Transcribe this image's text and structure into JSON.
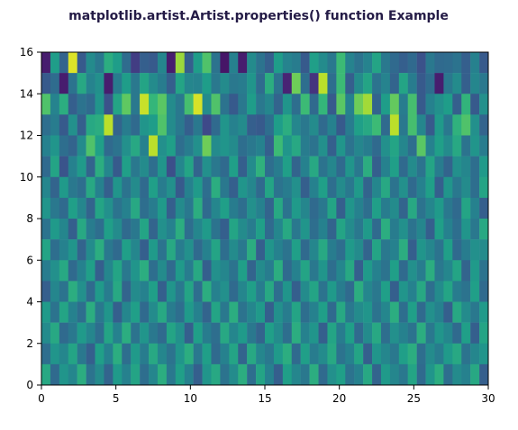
{
  "chart_data": {
    "type": "heatmap",
    "title": "matplotlib.artist.Artist.properties() function Example",
    "xlabel": "",
    "ylabel": "",
    "xlim": [
      0,
      30
    ],
    "ylim": [
      0,
      16
    ],
    "xticks": [
      0,
      5,
      10,
      15,
      20,
      25,
      30
    ],
    "yticks": [
      0,
      2,
      4,
      6,
      8,
      10,
      12,
      14,
      16
    ],
    "grid": false,
    "colormap": "viridis",
    "value_range": [
      0,
      1
    ],
    "cell_width": 1,
    "cell_height": 1,
    "rows_from_top": [
      [
        0.08,
        0.55,
        0.32,
        0.95,
        0.28,
        0.48,
        0.4,
        0.62,
        0.55,
        0.35,
        0.18,
        0.3,
        0.28,
        0.46,
        0.08,
        0.85,
        0.3,
        0.55,
        0.72,
        0.38,
        0.06,
        0.44,
        0.08,
        0.48,
        0.38,
        0.3,
        0.55,
        0.45,
        0.42,
        0.28,
        0.56,
        0.48,
        0.4,
        0.68,
        0.45,
        0.38,
        0.45,
        0.58,
        0.4,
        0.34,
        0.3,
        0.34,
        0.25,
        0.4,
        0.34,
        0.35,
        0.38,
        0.3,
        0.44,
        0.28
      ],
      [
        0.28,
        0.35,
        0.08,
        0.38,
        0.6,
        0.45,
        0.5,
        0.08,
        0.42,
        0.55,
        0.4,
        0.58,
        0.48,
        0.42,
        0.3,
        0.58,
        0.46,
        0.45,
        0.55,
        0.4,
        0.48,
        0.4,
        0.42,
        0.52,
        0.35,
        0.62,
        0.38,
        0.1,
        0.78,
        0.36,
        0.15,
        0.9,
        0.36,
        0.68,
        0.3,
        0.48,
        0.58,
        0.38,
        0.45,
        0.32,
        0.58,
        0.42,
        0.28,
        0.35,
        0.08,
        0.4,
        0.48,
        0.3,
        0.46,
        0.4
      ],
      [
        0.72,
        0.45,
        0.62,
        0.3,
        0.38,
        0.34,
        0.52,
        0.25,
        0.58,
        0.75,
        0.4,
        0.92,
        0.66,
        0.74,
        0.48,
        0.4,
        0.7,
        0.94,
        0.48,
        0.72,
        0.38,
        0.28,
        0.4,
        0.55,
        0.4,
        0.46,
        0.32,
        0.52,
        0.36,
        0.68,
        0.34,
        0.66,
        0.28,
        0.74,
        0.44,
        0.78,
        0.86,
        0.32,
        0.55,
        0.76,
        0.42,
        0.7,
        0.28,
        0.44,
        0.5,
        0.55,
        0.3,
        0.65,
        0.28,
        0.5
      ],
      [
        0.36,
        0.42,
        0.28,
        0.5,
        0.3,
        0.6,
        0.62,
        0.9,
        0.32,
        0.42,
        0.34,
        0.52,
        0.55,
        0.72,
        0.48,
        0.4,
        0.3,
        0.4,
        0.22,
        0.34,
        0.52,
        0.44,
        0.48,
        0.3,
        0.28,
        0.36,
        0.55,
        0.62,
        0.46,
        0.4,
        0.48,
        0.34,
        0.44,
        0.28,
        0.42,
        0.56,
        0.6,
        0.68,
        0.34,
        0.9,
        0.4,
        0.7,
        0.46,
        0.28,
        0.54,
        0.4,
        0.64,
        0.72,
        0.5,
        0.32
      ],
      [
        0.44,
        0.52,
        0.36,
        0.32,
        0.48,
        0.72,
        0.56,
        0.34,
        0.38,
        0.5,
        0.6,
        0.44,
        0.9,
        0.5,
        0.56,
        0.36,
        0.42,
        0.5,
        0.78,
        0.48,
        0.52,
        0.48,
        0.36,
        0.4,
        0.44,
        0.3,
        0.68,
        0.52,
        0.6,
        0.42,
        0.38,
        0.5,
        0.3,
        0.52,
        0.38,
        0.46,
        0.42,
        0.34,
        0.5,
        0.58,
        0.46,
        0.36,
        0.74,
        0.44,
        0.56,
        0.48,
        0.6,
        0.38,
        0.52,
        0.42
      ],
      [
        0.34,
        0.58,
        0.26,
        0.44,
        0.54,
        0.32,
        0.62,
        0.46,
        0.28,
        0.56,
        0.4,
        0.48,
        0.36,
        0.52,
        0.24,
        0.46,
        0.58,
        0.32,
        0.5,
        0.4,
        0.34,
        0.56,
        0.3,
        0.48,
        0.64,
        0.36,
        0.42,
        0.56,
        0.32,
        0.44,
        0.6,
        0.38,
        0.46,
        0.34,
        0.52,
        0.4,
        0.62,
        0.3,
        0.44,
        0.56,
        0.34,
        0.48,
        0.38,
        0.58,
        0.42,
        0.32,
        0.5,
        0.46,
        0.36,
        0.54
      ],
      [
        0.46,
        0.32,
        0.54,
        0.4,
        0.36,
        0.6,
        0.44,
        0.3,
        0.52,
        0.38,
        0.48,
        0.34,
        0.56,
        0.42,
        0.5,
        0.28,
        0.44,
        0.54,
        0.36,
        0.62,
        0.4,
        0.3,
        0.52,
        0.46,
        0.34,
        0.58,
        0.38,
        0.42,
        0.5,
        0.3,
        0.44,
        0.56,
        0.36,
        0.48,
        0.4,
        0.54,
        0.32,
        0.46,
        0.6,
        0.38,
        0.5,
        0.34,
        0.44,
        0.56,
        0.3,
        0.52,
        0.4,
        0.48,
        0.36,
        0.58
      ],
      [
        0.52,
        0.4,
        0.34,
        0.56,
        0.46,
        0.32,
        0.58,
        0.5,
        0.38,
        0.44,
        0.6,
        0.36,
        0.42,
        0.54,
        0.3,
        0.48,
        0.4,
        0.62,
        0.34,
        0.46,
        0.56,
        0.42,
        0.36,
        0.5,
        0.44,
        0.32,
        0.6,
        0.38,
        0.54,
        0.46,
        0.34,
        0.4,
        0.58,
        0.3,
        0.52,
        0.44,
        0.36,
        0.56,
        0.42,
        0.48,
        0.32,
        0.6,
        0.38,
        0.46,
        0.54,
        0.4,
        0.34,
        0.58,
        0.44,
        0.3
      ],
      [
        0.38,
        0.54,
        0.46,
        0.3,
        0.6,
        0.42,
        0.36,
        0.56,
        0.48,
        0.34,
        0.4,
        0.58,
        0.32,
        0.5,
        0.44,
        0.62,
        0.36,
        0.46,
        0.54,
        0.38,
        0.3,
        0.58,
        0.48,
        0.42,
        0.56,
        0.34,
        0.46,
        0.6,
        0.4,
        0.52,
        0.36,
        0.44,
        0.32,
        0.58,
        0.48,
        0.4,
        0.54,
        0.34,
        0.62,
        0.42,
        0.5,
        0.38,
        0.46,
        0.3,
        0.56,
        0.44,
        0.36,
        0.52,
        0.4,
        0.6
      ],
      [
        0.58,
        0.36,
        0.44,
        0.52,
        0.32,
        0.48,
        0.62,
        0.4,
        0.34,
        0.56,
        0.46,
        0.3,
        0.54,
        0.38,
        0.6,
        0.42,
        0.5,
        0.34,
        0.44,
        0.58,
        0.36,
        0.48,
        0.4,
        0.62,
        0.3,
        0.52,
        0.44,
        0.38,
        0.56,
        0.34,
        0.46,
        0.6,
        0.42,
        0.36,
        0.54,
        0.48,
        0.32,
        0.58,
        0.4,
        0.44,
        0.62,
        0.3,
        0.52,
        0.46,
        0.38,
        0.56,
        0.34,
        0.42,
        0.5,
        0.48
      ],
      [
        0.42,
        0.5,
        0.6,
        0.34,
        0.44,
        0.56,
        0.3,
        0.46,
        0.58,
        0.4,
        0.52,
        0.62,
        0.36,
        0.48,
        0.34,
        0.54,
        0.42,
        0.6,
        0.3,
        0.5,
        0.46,
        0.38,
        0.56,
        0.32,
        0.48,
        0.42,
        0.62,
        0.34,
        0.44,
        0.58,
        0.4,
        0.52,
        0.36,
        0.46,
        0.6,
        0.3,
        0.54,
        0.44,
        0.38,
        0.56,
        0.34,
        0.5,
        0.42,
        0.62,
        0.4,
        0.46,
        0.58,
        0.32,
        0.54,
        0.38
      ],
      [
        0.3,
        0.46,
        0.38,
        0.62,
        0.5,
        0.34,
        0.54,
        0.42,
        0.6,
        0.32,
        0.48,
        0.44,
        0.56,
        0.3,
        0.52,
        0.4,
        0.58,
        0.36,
        0.62,
        0.44,
        0.5,
        0.34,
        0.46,
        0.56,
        0.42,
        0.6,
        0.36,
        0.52,
        0.3,
        0.48,
        0.58,
        0.38,
        0.54,
        0.42,
        0.34,
        0.62,
        0.46,
        0.4,
        0.56,
        0.3,
        0.52,
        0.44,
        0.6,
        0.36,
        0.48,
        0.58,
        0.42,
        0.38,
        0.56,
        0.34
      ],
      [
        0.54,
        0.38,
        0.58,
        0.44,
        0.36,
        0.62,
        0.4,
        0.52,
        0.3,
        0.46,
        0.56,
        0.34,
        0.48,
        0.6,
        0.42,
        0.36,
        0.54,
        0.44,
        0.32,
        0.58,
        0.4,
        0.62,
        0.38,
        0.46,
        0.54,
        0.3,
        0.5,
        0.42,
        0.58,
        0.36,
        0.44,
        0.56,
        0.34,
        0.6,
        0.4,
        0.48,
        0.52,
        0.38,
        0.46,
        0.62,
        0.36,
        0.56,
        0.34,
        0.5,
        0.44,
        0.3,
        0.6,
        0.48,
        0.4,
        0.54
      ],
      [
        0.48,
        0.6,
        0.34,
        0.4,
        0.54,
        0.46,
        0.36,
        0.58,
        0.44,
        0.62,
        0.38,
        0.52,
        0.4,
        0.34,
        0.58,
        0.5,
        0.3,
        0.56,
        0.42,
        0.36,
        0.6,
        0.46,
        0.54,
        0.4,
        0.32,
        0.56,
        0.48,
        0.36,
        0.62,
        0.44,
        0.52,
        0.3,
        0.58,
        0.42,
        0.56,
        0.34,
        0.48,
        0.6,
        0.36,
        0.5,
        0.44,
        0.38,
        0.62,
        0.4,
        0.52,
        0.46,
        0.34,
        0.56,
        0.3,
        0.58
      ],
      [
        0.36,
        0.52,
        0.46,
        0.58,
        0.4,
        0.3,
        0.56,
        0.44,
        0.62,
        0.36,
        0.54,
        0.42,
        0.6,
        0.46,
        0.38,
        0.52,
        0.62,
        0.4,
        0.56,
        0.34,
        0.44,
        0.58,
        0.32,
        0.6,
        0.46,
        0.4,
        0.54,
        0.62,
        0.34,
        0.56,
        0.42,
        0.48,
        0.6,
        0.38,
        0.44,
        0.58,
        0.3,
        0.52,
        0.46,
        0.4,
        0.56,
        0.62,
        0.36,
        0.48,
        0.42,
        0.54,
        0.6,
        0.38,
        0.46,
        0.52
      ],
      [
        0.6,
        0.34,
        0.52,
        0.46,
        0.62,
        0.38,
        0.48,
        0.32,
        0.54,
        0.44,
        0.58,
        0.36,
        0.46,
        0.62,
        0.4,
        0.56,
        0.44,
        0.3,
        0.52,
        0.6,
        0.38,
        0.48,
        0.62,
        0.36,
        0.58,
        0.44,
        0.3,
        0.56,
        0.46,
        0.4,
        0.62,
        0.34,
        0.5,
        0.56,
        0.38,
        0.44,
        0.6,
        0.32,
        0.54,
        0.46,
        0.4,
        0.58,
        0.34,
        0.52,
        0.62,
        0.36,
        0.48,
        0.44,
        0.6,
        0.3
      ]
    ]
  }
}
